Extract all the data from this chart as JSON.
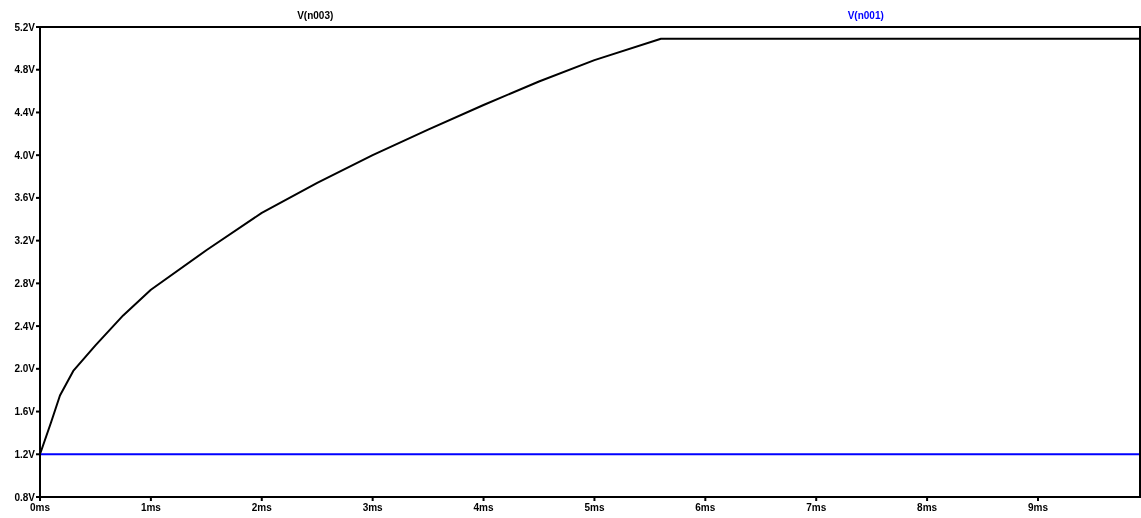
{
  "chart_data": {
    "type": "line",
    "legend": "top",
    "grid": false,
    "xlim": [
      0,
      9.92
    ],
    "xticks": [
      {
        "value": 0,
        "label": "0ms"
      },
      {
        "value": 1,
        "label": "1ms"
      },
      {
        "value": 2,
        "label": "2ms"
      },
      {
        "value": 3,
        "label": "3ms"
      },
      {
        "value": 4,
        "label": "4ms"
      },
      {
        "value": 5,
        "label": "5ms"
      },
      {
        "value": 6,
        "label": "6ms"
      },
      {
        "value": 7,
        "label": "7ms"
      },
      {
        "value": 8,
        "label": "8ms"
      },
      {
        "value": 9,
        "label": "9ms"
      }
    ],
    "ylim": [
      0.8,
      5.2
    ],
    "yticks": [
      {
        "value": 0.8,
        "label": "0.8V"
      },
      {
        "value": 1.2,
        "label": "1.2V"
      },
      {
        "value": 1.6,
        "label": "1.6V"
      },
      {
        "value": 2.0,
        "label": "2.0V"
      },
      {
        "value": 2.4,
        "label": "2.4V"
      },
      {
        "value": 2.8,
        "label": "2.8V"
      },
      {
        "value": 3.2,
        "label": "3.2V"
      },
      {
        "value": 3.6,
        "label": "3.6V"
      },
      {
        "value": 4.0,
        "label": "4.0V"
      },
      {
        "value": 4.4,
        "label": "4.4V"
      },
      {
        "value": 4.8,
        "label": "4.8V"
      },
      {
        "value": 5.2,
        "label": "5.2V"
      }
    ],
    "series": [
      {
        "name": "V(n003)",
        "color": "#000000",
        "x": [
          0,
          0.1,
          0.18,
          0.3,
          0.5,
          0.75,
          1,
          1.5,
          2,
          2.5,
          3,
          3.5,
          4,
          4.5,
          5,
          5.6,
          9.92
        ],
        "values": [
          1.2,
          1.5,
          1.75,
          1.98,
          2.22,
          2.5,
          2.74,
          3.11,
          3.46,
          3.74,
          4.0,
          4.24,
          4.47,
          4.69,
          4.89,
          5.09,
          5.09
        ]
      },
      {
        "name": "V(n001)",
        "color": "#0000ff",
        "x": [
          0,
          9.92
        ],
        "values": [
          1.2,
          1.2
        ]
      }
    ]
  }
}
